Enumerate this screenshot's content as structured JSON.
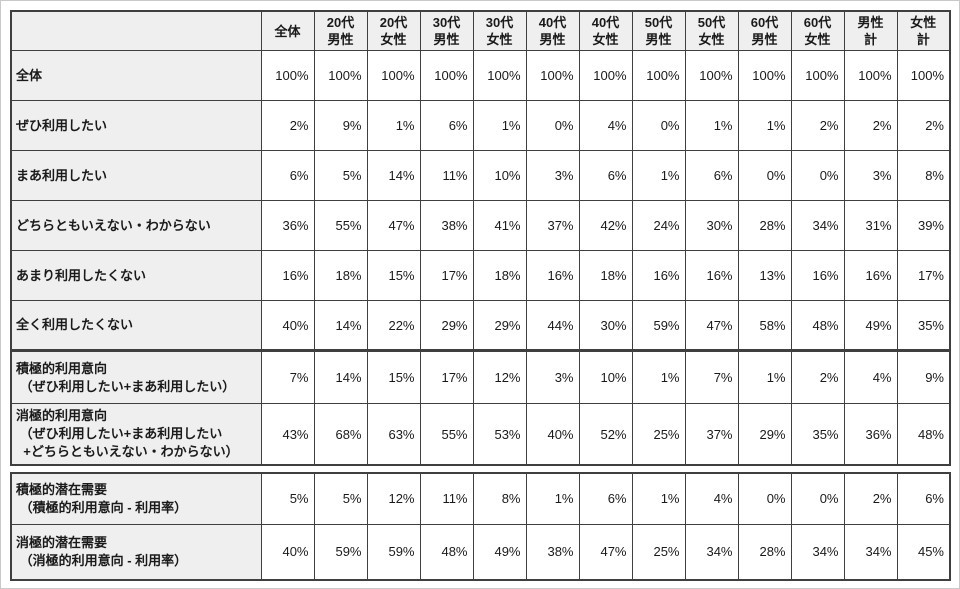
{
  "chart_data": {
    "type": "table",
    "columns": [
      "",
      "全体",
      "20代\n男性",
      "20代\n女性",
      "30代\n男性",
      "30代\n女性",
      "40代\n男性",
      "40代\n女性",
      "50代\n男性",
      "50代\n女性",
      "60代\n男性",
      "60代\n女性",
      "男性\n計",
      "女性\n計"
    ],
    "tables": [
      {
        "name": "usage-intention-table",
        "rows": [
          {
            "label": "全体",
            "values": [
              "100%",
              "100%",
              "100%",
              "100%",
              "100%",
              "100%",
              "100%",
              "100%",
              "100%",
              "100%",
              "100%",
              "100%",
              "100%"
            ]
          },
          {
            "label": "ぜひ利用したい",
            "values": [
              "2%",
              "9%",
              "1%",
              "6%",
              "1%",
              "0%",
              "4%",
              "0%",
              "1%",
              "1%",
              "2%",
              "2%",
              "2%"
            ]
          },
          {
            "label": "まあ利用したい",
            "values": [
              "6%",
              "5%",
              "14%",
              "11%",
              "10%",
              "3%",
              "6%",
              "1%",
              "6%",
              "0%",
              "0%",
              "3%",
              "8%"
            ]
          },
          {
            "label": "どちらともいえない・わからない",
            "values": [
              "36%",
              "55%",
              "47%",
              "38%",
              "41%",
              "37%",
              "42%",
              "24%",
              "30%",
              "28%",
              "34%",
              "31%",
              "39%"
            ]
          },
          {
            "label": "あまり利用したくない",
            "values": [
              "16%",
              "18%",
              "15%",
              "17%",
              "18%",
              "16%",
              "18%",
              "16%",
              "16%",
              "13%",
              "16%",
              "16%",
              "17%"
            ]
          },
          {
            "label": "全く利用したくない",
            "values": [
              "40%",
              "14%",
              "22%",
              "29%",
              "29%",
              "44%",
              "30%",
              "59%",
              "47%",
              "58%",
              "48%",
              "49%",
              "35%"
            ]
          },
          {
            "label": "積極的利用意向\n （ぜひ利用したい+まあ利用したい）",
            "values": [
              "7%",
              "14%",
              "15%",
              "17%",
              "12%",
              "3%",
              "10%",
              "1%",
              "7%",
              "1%",
              "2%",
              "4%",
              "9%"
            ]
          },
          {
            "label": "消極的利用意向\n （ぜひ利用したい+まあ利用したい\n  +どちらともいえない・わからない）",
            "values": [
              "43%",
              "68%",
              "63%",
              "55%",
              "53%",
              "40%",
              "52%",
              "25%",
              "37%",
              "29%",
              "35%",
              "36%",
              "48%"
            ]
          }
        ]
      },
      {
        "name": "latent-demand-table",
        "rows": [
          {
            "label": "積極的潜在需要\n （積極的利用意向 - 利用率）",
            "values": [
              "5%",
              "5%",
              "12%",
              "11%",
              "8%",
              "1%",
              "6%",
              "1%",
              "4%",
              "0%",
              "0%",
              "2%",
              "6%"
            ]
          },
          {
            "label": "消極的潜在需要\n （消極的利用意向 - 利用率）",
            "values": [
              "40%",
              "59%",
              "59%",
              "48%",
              "49%",
              "38%",
              "47%",
              "25%",
              "34%",
              "28%",
              "34%",
              "34%",
              "45%"
            ]
          }
        ]
      }
    ]
  }
}
